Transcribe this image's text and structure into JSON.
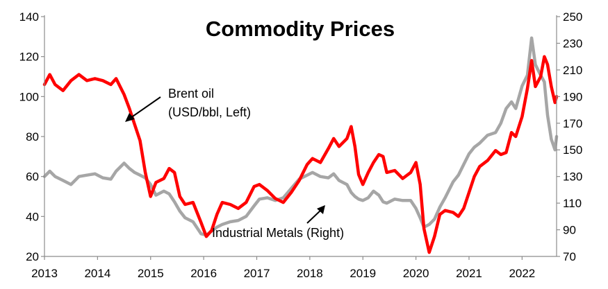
{
  "chart_data": {
    "type": "line",
    "title": "Commodity Prices",
    "x_ticks": [
      "2013",
      "2014",
      "2015",
      "2016",
      "2017",
      "2018",
      "2019",
      "2020",
      "2021",
      "2022"
    ],
    "xlim": [
      2013.0,
      2022.65
    ],
    "left_axis": {
      "lim": [
        20,
        140
      ],
      "ticks": [
        "20",
        "40",
        "60",
        "80",
        "100",
        "120",
        "140"
      ]
    },
    "right_axis": {
      "lim": [
        70,
        250
      ],
      "ticks": [
        "70",
        "90",
        "110",
        "130",
        "150",
        "170",
        "190",
        "210",
        "230",
        "250"
      ]
    },
    "grid": false,
    "legend": "none (series labelled by annotations)",
    "annotations": {
      "brent_line1": "Brent oil",
      "brent_line2": "(USD/bbl, Left)",
      "metals": "Industrial Metals (Right)"
    },
    "series": [
      {
        "name": "Brent oil (USD/bbl, Left)",
        "axis": "left",
        "color": "#ff0000",
        "points": [
          [
            2013.0,
            106
          ],
          [
            2013.1,
            111
          ],
          [
            2013.2,
            106
          ],
          [
            2013.35,
            103
          ],
          [
            2013.5,
            108
          ],
          [
            2013.65,
            111
          ],
          [
            2013.8,
            108
          ],
          [
            2013.95,
            109
          ],
          [
            2014.1,
            108
          ],
          [
            2014.25,
            106
          ],
          [
            2014.35,
            109
          ],
          [
            2014.5,
            101
          ],
          [
            2014.6,
            94
          ],
          [
            2014.7,
            86
          ],
          [
            2014.8,
            78
          ],
          [
            2014.9,
            62
          ],
          [
            2015.0,
            50
          ],
          [
            2015.1,
            57
          ],
          [
            2015.25,
            59
          ],
          [
            2015.35,
            64
          ],
          [
            2015.45,
            62
          ],
          [
            2015.55,
            50
          ],
          [
            2015.65,
            46
          ],
          [
            2015.8,
            47
          ],
          [
            2015.95,
            37
          ],
          [
            2016.05,
            30
          ],
          [
            2016.15,
            33
          ],
          [
            2016.25,
            41
          ],
          [
            2016.35,
            47
          ],
          [
            2016.5,
            46
          ],
          [
            2016.65,
            44
          ],
          [
            2016.8,
            47
          ],
          [
            2016.95,
            55
          ],
          [
            2017.05,
            56
          ],
          [
            2017.2,
            53
          ],
          [
            2017.35,
            49
          ],
          [
            2017.5,
            47
          ],
          [
            2017.65,
            52
          ],
          [
            2017.8,
            58
          ],
          [
            2017.95,
            66
          ],
          [
            2018.05,
            69
          ],
          [
            2018.2,
            67
          ],
          [
            2018.35,
            74
          ],
          [
            2018.45,
            79
          ],
          [
            2018.55,
            75
          ],
          [
            2018.7,
            79
          ],
          [
            2018.78,
            85
          ],
          [
            2018.85,
            75
          ],
          [
            2018.92,
            61
          ],
          [
            2019.0,
            56
          ],
          [
            2019.1,
            62
          ],
          [
            2019.2,
            67
          ],
          [
            2019.3,
            71
          ],
          [
            2019.38,
            70
          ],
          [
            2019.45,
            62
          ],
          [
            2019.6,
            63
          ],
          [
            2019.75,
            59
          ],
          [
            2019.9,
            62
          ],
          [
            2020.0,
            67
          ],
          [
            2020.08,
            56
          ],
          [
            2020.15,
            34
          ],
          [
            2020.25,
            22
          ],
          [
            2020.35,
            30
          ],
          [
            2020.45,
            41
          ],
          [
            2020.55,
            43
          ],
          [
            2020.7,
            42
          ],
          [
            2020.8,
            40
          ],
          [
            2020.9,
            44
          ],
          [
            2021.0,
            52
          ],
          [
            2021.1,
            60
          ],
          [
            2021.2,
            65
          ],
          [
            2021.35,
            68
          ],
          [
            2021.5,
            73
          ],
          [
            2021.6,
            71
          ],
          [
            2021.7,
            72
          ],
          [
            2021.8,
            82
          ],
          [
            2021.88,
            80
          ],
          [
            2022.0,
            90
          ],
          [
            2022.1,
            104
          ],
          [
            2022.18,
            118
          ],
          [
            2022.25,
            105
          ],
          [
            2022.35,
            110
          ],
          [
            2022.42,
            120
          ],
          [
            2022.48,
            116
          ],
          [
            2022.55,
            105
          ],
          [
            2022.62,
            97
          ],
          [
            2022.65,
            100
          ]
        ]
      },
      {
        "name": "Industrial Metals (Right)",
        "axis": "right",
        "color": "#a6a6a6",
        "points": [
          [
            2013.0,
            130
          ],
          [
            2013.1,
            134
          ],
          [
            2013.2,
            130
          ],
          [
            2013.35,
            127
          ],
          [
            2013.5,
            124
          ],
          [
            2013.65,
            130
          ],
          [
            2013.8,
            131
          ],
          [
            2013.95,
            132
          ],
          [
            2014.1,
            129
          ],
          [
            2014.25,
            128
          ],
          [
            2014.35,
            134
          ],
          [
            2014.5,
            140
          ],
          [
            2014.6,
            136
          ],
          [
            2014.7,
            133
          ],
          [
            2014.8,
            131
          ],
          [
            2014.9,
            129
          ],
          [
            2015.0,
            124
          ],
          [
            2015.1,
            116
          ],
          [
            2015.25,
            119
          ],
          [
            2015.35,
            117
          ],
          [
            2015.45,
            111
          ],
          [
            2015.55,
            104
          ],
          [
            2015.65,
            99
          ],
          [
            2015.8,
            96
          ],
          [
            2015.95,
            87
          ],
          [
            2016.05,
            86
          ],
          [
            2016.15,
            89
          ],
          [
            2016.25,
            92
          ],
          [
            2016.35,
            94
          ],
          [
            2016.5,
            96
          ],
          [
            2016.65,
            97
          ],
          [
            2016.8,
            100
          ],
          [
            2016.95,
            108
          ],
          [
            2017.05,
            113
          ],
          [
            2017.2,
            114
          ],
          [
            2017.35,
            112
          ],
          [
            2017.5,
            114
          ],
          [
            2017.65,
            121
          ],
          [
            2017.8,
            128
          ],
          [
            2017.95,
            131
          ],
          [
            2018.05,
            133
          ],
          [
            2018.2,
            130
          ],
          [
            2018.35,
            129
          ],
          [
            2018.45,
            132
          ],
          [
            2018.55,
            127
          ],
          [
            2018.7,
            124
          ],
          [
            2018.78,
            118
          ],
          [
            2018.85,
            115
          ],
          [
            2018.92,
            113
          ],
          [
            2019.0,
            112
          ],
          [
            2019.1,
            114
          ],
          [
            2019.2,
            119
          ],
          [
            2019.3,
            116
          ],
          [
            2019.38,
            111
          ],
          [
            2019.45,
            110
          ],
          [
            2019.6,
            113
          ],
          [
            2019.75,
            112
          ],
          [
            2019.9,
            112
          ],
          [
            2020.0,
            106
          ],
          [
            2020.08,
            99
          ],
          [
            2020.15,
            92
          ],
          [
            2020.25,
            94
          ],
          [
            2020.35,
            98
          ],
          [
            2020.45,
            107
          ],
          [
            2020.55,
            114
          ],
          [
            2020.7,
            126
          ],
          [
            2020.8,
            131
          ],
          [
            2020.9,
            139
          ],
          [
            2021.0,
            147
          ],
          [
            2021.1,
            152
          ],
          [
            2021.2,
            155
          ],
          [
            2021.35,
            161
          ],
          [
            2021.5,
            163
          ],
          [
            2021.6,
            170
          ],
          [
            2021.7,
            181
          ],
          [
            2021.8,
            186
          ],
          [
            2021.88,
            181
          ],
          [
            2022.0,
            198
          ],
          [
            2022.1,
            206
          ],
          [
            2022.18,
            234
          ],
          [
            2022.25,
            214
          ],
          [
            2022.35,
            206
          ],
          [
            2022.42,
            201
          ],
          [
            2022.48,
            176
          ],
          [
            2022.55,
            158
          ],
          [
            2022.62,
            150
          ],
          [
            2022.65,
            160
          ]
        ]
      }
    ]
  }
}
